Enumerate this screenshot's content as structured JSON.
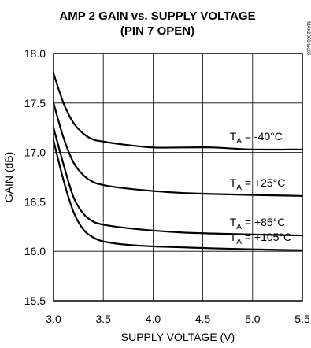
{
  "chart_data": {
    "type": "line",
    "title": "AMP 2 GAIN vs. SUPPLY VOLTAGE",
    "subtitle": "(PIN 7 OPEN)",
    "xlabel": "SUPPLY VOLTAGE (V)",
    "ylabel": "GAIN (dB)",
    "xlim": [
      3.0,
      5.5
    ],
    "ylim": [
      15.5,
      18.0
    ],
    "xticks": [
      3.0,
      3.5,
      4.0,
      4.5,
      5.0,
      5.5
    ],
    "xtick_labels": [
      "3.0",
      "3.5",
      "4.0",
      "4.5",
      "5.0",
      "5.5"
    ],
    "yticks": [
      15.5,
      16.0,
      16.5,
      17.0,
      17.5,
      18.0
    ],
    "ytick_labels": [
      "15.5",
      "16.0",
      "16.5",
      "17.0",
      "17.5",
      "18.0"
    ],
    "grid": true,
    "watermark": "MAX2000 toc05",
    "series": [
      {
        "name": "TA = -40°C",
        "label": {
          "pre": "T",
          "sub": "A",
          "post": " = -40°C"
        },
        "x": [
          3.0,
          3.1,
          3.2,
          3.3,
          3.4,
          3.5,
          3.7,
          4.0,
          4.3,
          4.6,
          5.0,
          5.5
        ],
        "y": [
          17.8,
          17.5,
          17.3,
          17.19,
          17.13,
          17.11,
          17.08,
          17.05,
          17.05,
          17.05,
          17.03,
          17.03
        ]
      },
      {
        "name": "TA = +25°C",
        "label": {
          "pre": "T",
          "sub": "A",
          "post": " = +25°C"
        },
        "x": [
          3.0,
          3.1,
          3.2,
          3.3,
          3.4,
          3.5,
          3.7,
          4.0,
          4.3,
          4.6,
          5.0,
          5.5
        ],
        "y": [
          17.5,
          17.15,
          16.9,
          16.77,
          16.7,
          16.67,
          16.64,
          16.61,
          16.59,
          16.58,
          16.57,
          16.56
        ]
      },
      {
        "name": "TA = +85°C",
        "label": {
          "pre": "T",
          "sub": "A",
          "post": " = +85°C"
        },
        "x": [
          3.0,
          3.1,
          3.2,
          3.3,
          3.4,
          3.5,
          3.7,
          4.0,
          4.3,
          4.6,
          5.0,
          5.5
        ],
        "y": [
          17.25,
          16.88,
          16.55,
          16.38,
          16.3,
          16.27,
          16.24,
          16.21,
          16.19,
          16.18,
          16.17,
          16.16
        ]
      },
      {
        "name": "TA = +105°C",
        "label": {
          "pre": "T",
          "sub": "A",
          "post": " = +105°C"
        },
        "x": [
          3.0,
          3.1,
          3.2,
          3.3,
          3.4,
          3.5,
          3.7,
          4.0,
          4.3,
          4.6,
          5.0,
          5.5
        ],
        "y": [
          17.12,
          16.72,
          16.4,
          16.22,
          16.14,
          16.1,
          16.07,
          16.05,
          16.04,
          16.03,
          16.02,
          16.01
        ]
      }
    ]
  }
}
